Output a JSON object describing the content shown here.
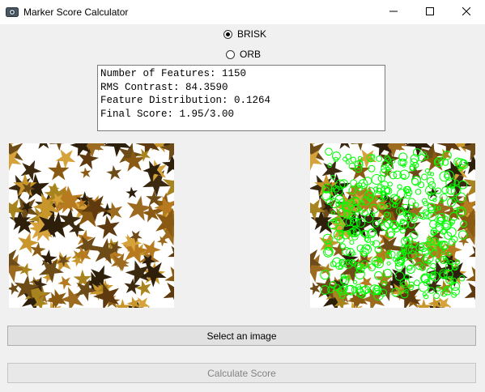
{
  "window": {
    "title": "Marker Score Calculator",
    "app_icon": "camera-icon",
    "controls": [
      "minimize-icon",
      "maximize-icon",
      "close-icon"
    ]
  },
  "detector": {
    "options": [
      {
        "label": "BRISK",
        "checked": true
      },
      {
        "label": "ORB",
        "checked": false
      }
    ]
  },
  "output": {
    "lines": [
      "Number of Features: 1150",
      "RMS Contrast: 84.3590",
      "Feature Distribution: 0.1264",
      "Final Score: 1.95/3.00"
    ]
  },
  "images": {
    "left": "leaves-image",
    "right": "leaves-image-with-keypoints",
    "keypoint_color": "#00ff00"
  },
  "buttons": {
    "select_label": "Select an image",
    "calculate_label": "Calculate Score",
    "calculate_enabled": false
  }
}
